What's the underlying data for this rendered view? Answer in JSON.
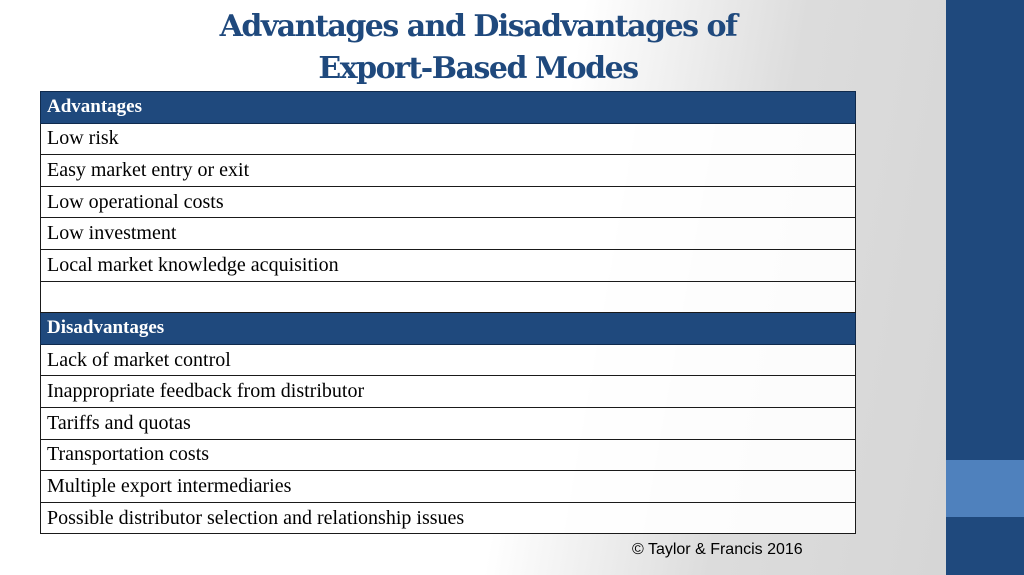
{
  "slide": {
    "title_line1": "Advantages and Disadvantages of",
    "title_line2": "Export-Based Modes",
    "copyright": "© Taylor & Francis 2016"
  },
  "table": {
    "advantages_header": "Advantages",
    "advantages": [
      "Low risk",
      "Easy market entry or exit",
      "Low operational costs",
      "Low investment",
      "Local market knowledge acquisition"
    ],
    "disadvantages_header": "Disadvantages",
    "disadvantages": [
      "Lack of market control",
      "Inappropriate feedback from distributor",
      "Tariffs and quotas",
      "Transportation costs",
      "Multiple export intermediaries",
      "Possible distributor selection and relationship issues"
    ]
  },
  "colors": {
    "header_fill": "#1f497d",
    "accent_band": "#4f81bd",
    "title_text": "#1f497d"
  }
}
